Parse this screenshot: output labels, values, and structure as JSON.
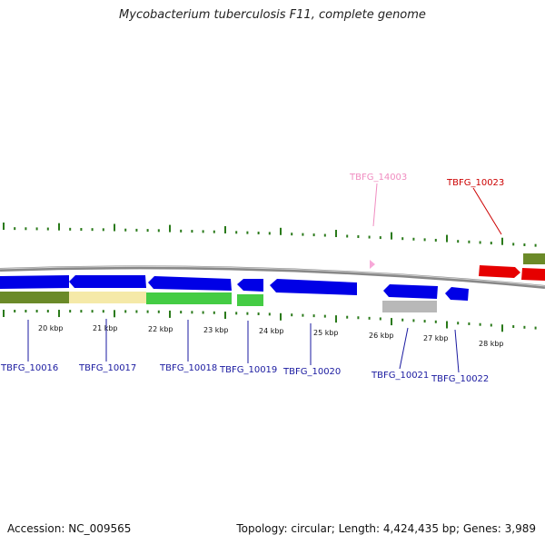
{
  "title": "Mycobacterium tuberculosis F11, complete genome",
  "footer": {
    "accession": "Accession: NC_009565",
    "topology": "Topology: circular; Length: 4,424,435 bp; Genes: 3,989"
  },
  "colors": {
    "backbone": "#888888",
    "tick": "#2a7a1a",
    "cds_blue": "#0000e6",
    "cds_red": "#e60000",
    "label_blue": "#1a1aa0",
    "label_red": "#cc0000",
    "label_pink": "#f08cc0",
    "olive": "#6b8a28",
    "pale_yellow": "#f5e9a8",
    "green": "#44cc44",
    "grey": "#b8b8b8",
    "pink_marker": "#f7a8d8"
  },
  "scale_ticks": [
    "20 kbp",
    "21 kbp",
    "22 kbp",
    "23 kbp",
    "24 kbp",
    "25 kbp",
    "26 kbp",
    "27 kbp",
    "28 kbp"
  ],
  "gene_labels": [
    {
      "name": "TBFG_10016",
      "color": "label_blue"
    },
    {
      "name": "TBFG_10017",
      "color": "label_blue"
    },
    {
      "name": "TBFG_10018",
      "color": "label_blue"
    },
    {
      "name": "TBFG_10019",
      "color": "label_blue"
    },
    {
      "name": "TBFG_10020",
      "color": "label_blue"
    },
    {
      "name": "TBFG_10021",
      "color": "label_blue"
    },
    {
      "name": "TBFG_10022",
      "color": "label_blue"
    },
    {
      "name": "TBFG_14003",
      "color": "label_pink"
    },
    {
      "name": "TBFG_10023",
      "color": "label_red"
    }
  ]
}
